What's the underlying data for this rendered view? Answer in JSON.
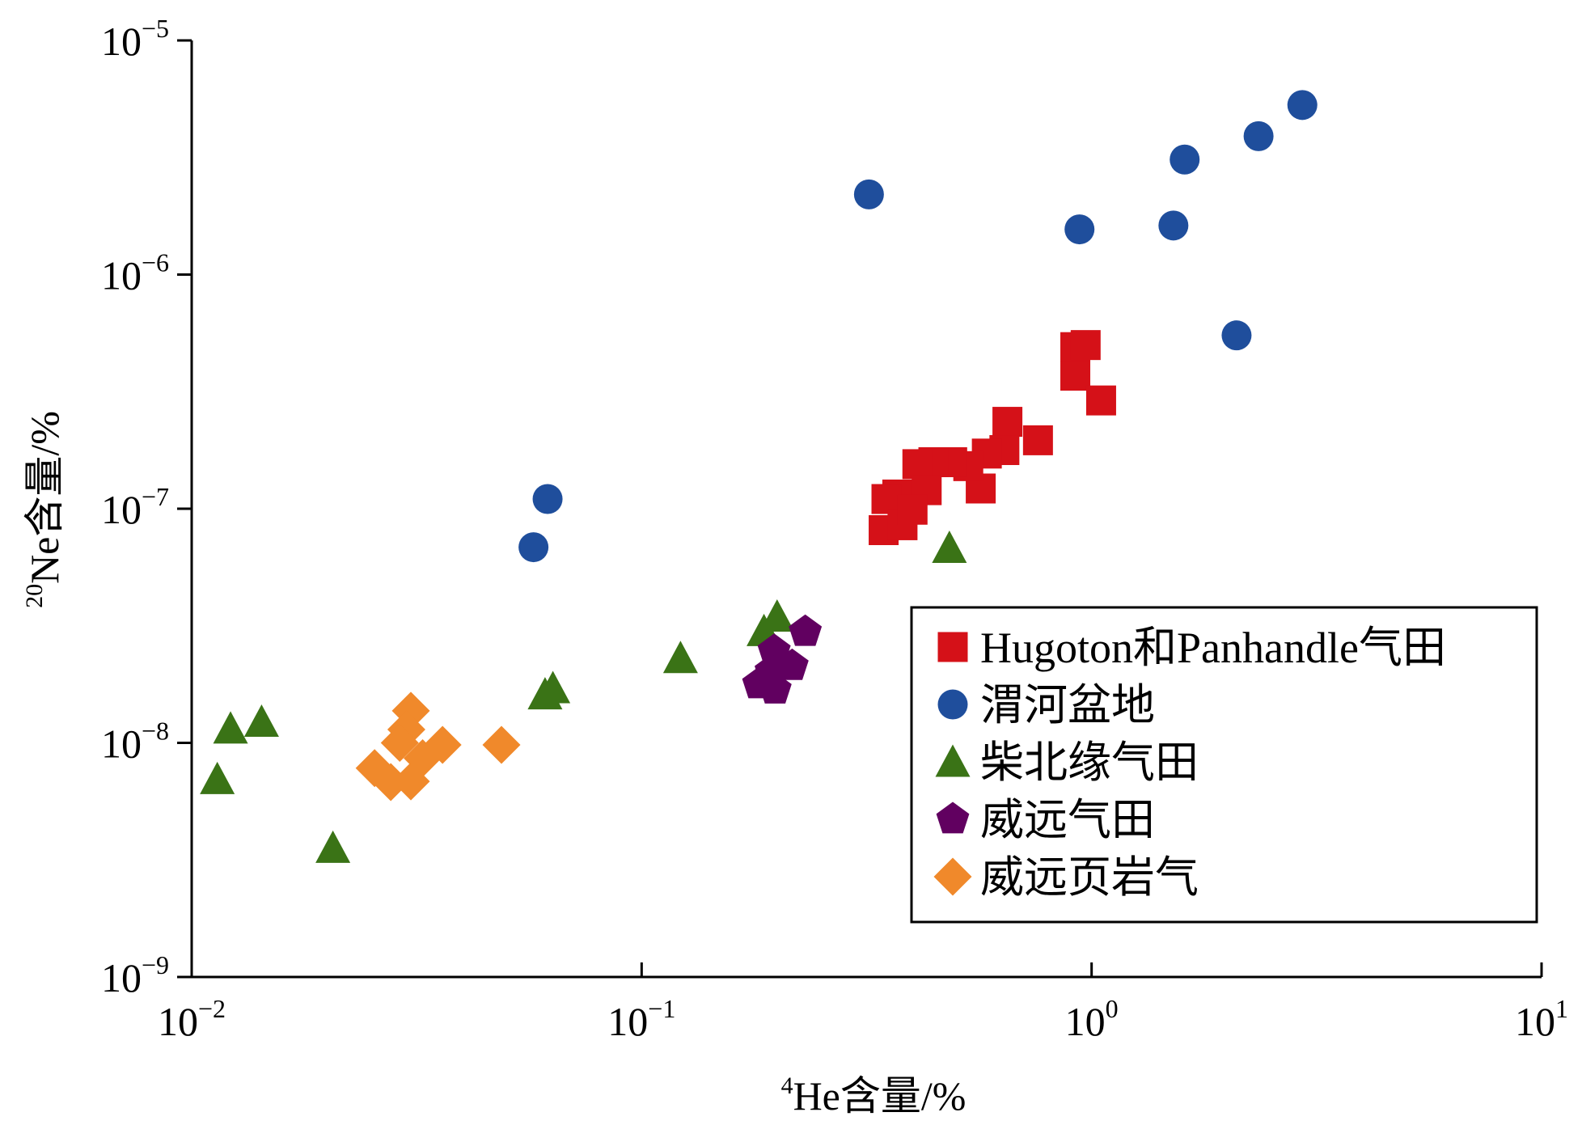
{
  "chart_data": {
    "type": "scatter",
    "title": "",
    "xlabel": {
      "sup": "4",
      "text": "He含量/%"
    },
    "ylabel": {
      "sup": "20",
      "text": "Ne含量/%"
    },
    "xscale": "log",
    "yscale": "log",
    "xlim": [
      0.01,
      10
    ],
    "ylim": [
      1e-09,
      1e-05
    ],
    "x_ticks": [
      {
        "base": "10",
        "exp": "−2",
        "value": 0.01
      },
      {
        "base": "10",
        "exp": "−1",
        "value": 0.1
      },
      {
        "base": "10",
        "exp": "0",
        "value": 1
      },
      {
        "base": "10",
        "exp": "1",
        "value": 10
      }
    ],
    "y_ticks": [
      {
        "base": "10",
        "exp": "−9",
        "value": 1e-09
      },
      {
        "base": "10",
        "exp": "−8",
        "value": 1e-08
      },
      {
        "base": "10",
        "exp": "−7",
        "value": 1e-07
      },
      {
        "base": "10",
        "exp": "−6",
        "value": 1e-06
      },
      {
        "base": "10",
        "exp": "−5",
        "value": 1e-05
      }
    ],
    "grid": false,
    "legend_position": "bottom-right",
    "series": [
      {
        "name": "Hugoton和Panhandle气田",
        "marker": "square",
        "color": "#d51118",
        "points": [
          [
            0.92,
            4.9e-07
          ],
          [
            0.97,
            5e-07
          ],
          [
            0.92,
            3.7e-07
          ],
          [
            1.05,
            2.9e-07
          ],
          [
            0.76,
            1.96e-07
          ],
          [
            0.65,
            2.35e-07
          ],
          [
            0.64,
            1.78e-07
          ],
          [
            0.585,
            1.72e-07
          ],
          [
            0.567,
            1.22e-07
          ],
          [
            0.532,
            1.52e-07
          ],
          [
            0.49,
            1.58e-07
          ],
          [
            0.445,
            1.58e-07
          ],
          [
            0.41,
            1.55e-07
          ],
          [
            0.43,
            1.2e-07
          ],
          [
            0.37,
            1.15e-07
          ],
          [
            0.35,
            1.1e-07
          ],
          [
            0.345,
            8.1e-08
          ],
          [
            0.38,
            8.5e-08
          ],
          [
            0.4,
            9.9e-08
          ]
        ]
      },
      {
        "name": "渭河盆地",
        "marker": "circle",
        "color": "#1f4e9c",
        "points": [
          [
            0.32,
            2.2e-06
          ],
          [
            0.94,
            1.56e-06
          ],
          [
            1.52,
            1.62e-06
          ],
          [
            1.61,
            3.1e-06
          ],
          [
            2.35,
            3.9e-06
          ],
          [
            2.94,
            5.3e-06
          ],
          [
            2.1,
            5.5e-07
          ],
          [
            0.0618,
            1.1e-07
          ],
          [
            0.0575,
            6.85e-08
          ]
        ]
      },
      {
        "name": "柴北缘气田",
        "marker": "triangle",
        "color": "#3a7316",
        "points": [
          [
            0.0114,
            7e-09
          ],
          [
            0.0122,
            1.15e-08
          ],
          [
            0.0143,
            1.23e-08
          ],
          [
            0.0206,
            3.56e-09
          ],
          [
            0.061,
            1.61e-08
          ],
          [
            0.0635,
            1.71e-08
          ],
          [
            0.122,
            2.3e-08
          ],
          [
            0.187,
            3e-08
          ],
          [
            0.2,
            3.46e-08
          ],
          [
            0.483,
            6.8e-08
          ]
        ]
      },
      {
        "name": "威远气田",
        "marker": "pentagon",
        "color": "#610060",
        "points": [
          [
            0.231,
            2.98e-08
          ],
          [
            0.197,
            2.47e-08
          ],
          [
            0.216,
            2.13e-08
          ],
          [
            0.182,
            1.78e-08
          ],
          [
            0.198,
            1.69e-08
          ],
          [
            0.194,
            2.02e-08
          ]
        ]
      },
      {
        "name": "威远页岩气",
        "marker": "diamond",
        "color": "#f0892b",
        "points": [
          [
            0.0307,
            1.37e-08
          ],
          [
            0.03,
            1.14e-08
          ],
          [
            0.0361,
            9.8e-09
          ],
          [
            0.0255,
            7.8e-09
          ],
          [
            0.0307,
            6.85e-09
          ],
          [
            0.0326,
            8.6e-09
          ],
          [
            0.0277,
            6.8e-09
          ],
          [
            0.029,
            1e-08
          ],
          [
            0.0488,
            9.8e-09
          ]
        ]
      }
    ]
  }
}
